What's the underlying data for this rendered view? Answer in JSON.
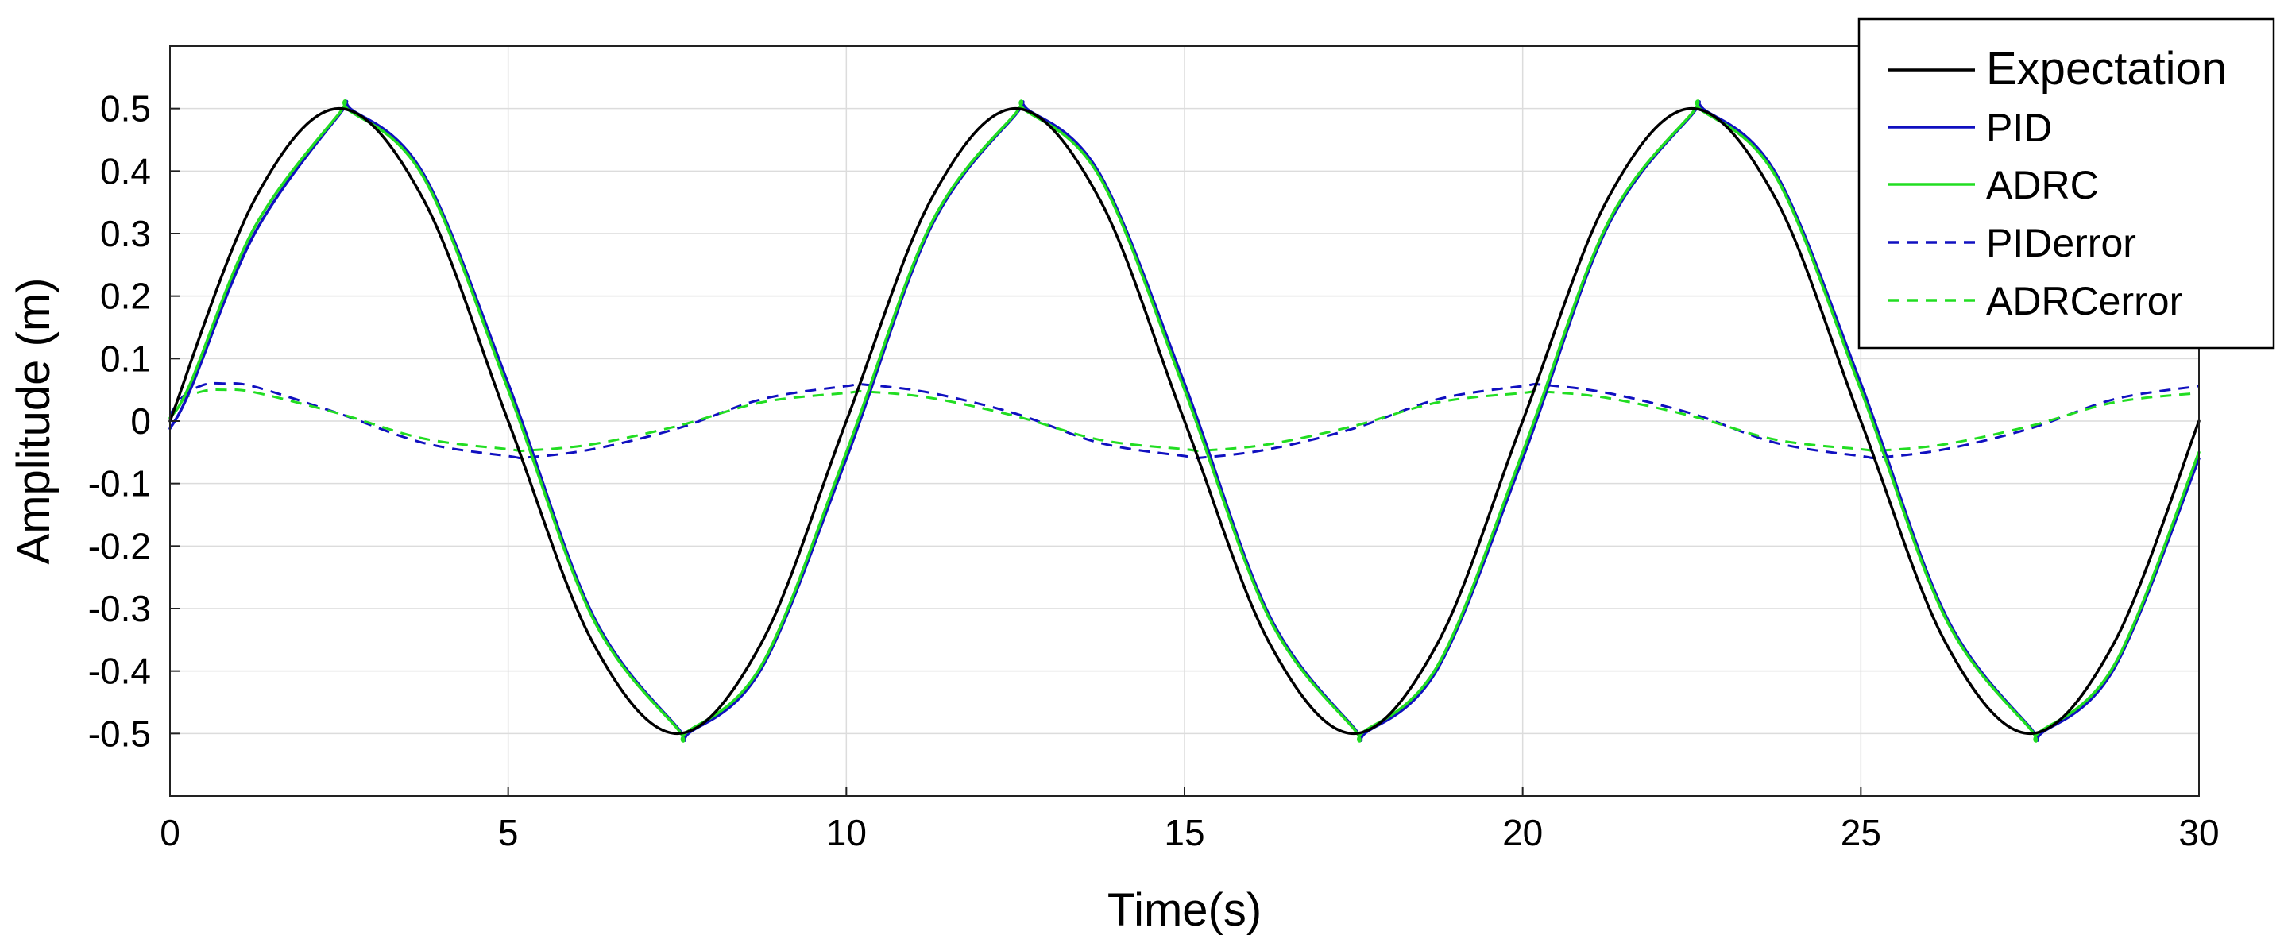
{
  "chart_data": {
    "type": "line",
    "title": "",
    "xlabel": "Time(s)",
    "ylabel": "Amplitude (m)",
    "xlim": [
      0,
      30
    ],
    "ylim": [
      -0.6,
      0.6
    ],
    "x_ticks": [
      "0",
      "5",
      "10",
      "15",
      "20",
      "25",
      "30"
    ],
    "y_ticks": [
      "0.5",
      "0.4",
      "0.3",
      "0.2",
      "0.1",
      "0",
      "-0.1",
      "-0.2",
      "-0.3",
      "-0.4",
      "-0.5"
    ],
    "grid": true,
    "legend_position": "top-right",
    "series": [
      {
        "name": "Expectation",
        "color": "#000000",
        "dash": "solid",
        "x": [
          0,
          1.25,
          2.5,
          3.75,
          5,
          6.25,
          7.5,
          8.75,
          10,
          11.25,
          12.5,
          13.75,
          15,
          16.25,
          17.5,
          18.75,
          20,
          21.25,
          22.5,
          23.75,
          25,
          26.25,
          27.5,
          28.75,
          30
        ],
        "y": [
          0,
          0.354,
          0.5,
          0.354,
          0,
          -0.354,
          -0.5,
          -0.354,
          0,
          0.354,
          0.5,
          0.354,
          0,
          -0.354,
          -0.5,
          -0.354,
          0,
          0.354,
          0.5,
          0.354,
          0,
          -0.354,
          -0.5,
          -0.354,
          0
        ]
      },
      {
        "name": "PID",
        "color": "#1010c0",
        "dash": "solid",
        "x": [
          0,
          0.3,
          1.25,
          2.5,
          2.7,
          3.75,
          5,
          6.25,
          7.5,
          7.7,
          8.75,
          10,
          11.25,
          12.5,
          12.7,
          13.75,
          15,
          16.25,
          17.5,
          17.7,
          18.75,
          20,
          21.25,
          22.5,
          22.7,
          23.75,
          25,
          26.25,
          27.5,
          27.7,
          28.75,
          30
        ],
        "y": [
          -0.012,
          0.05,
          0.3,
          0.49,
          0.497,
          0.395,
          0.06,
          -0.31,
          -0.49,
          -0.497,
          -0.395,
          -0.06,
          0.31,
          0.49,
          0.497,
          0.395,
          0.06,
          -0.31,
          -0.49,
          -0.497,
          -0.395,
          -0.06,
          0.31,
          0.49,
          0.497,
          0.395,
          0.06,
          -0.31,
          -0.49,
          -0.497,
          -0.395,
          -0.06
        ]
      },
      {
        "name": "ADRC",
        "color": "#22dd22",
        "dash": "solid",
        "x": [
          0,
          0.3,
          1.25,
          2.5,
          2.65,
          3.75,
          5,
          6.25,
          7.5,
          7.65,
          8.75,
          10,
          11.25,
          12.5,
          12.65,
          13.75,
          15,
          16.25,
          17.5,
          17.65,
          18.75,
          20,
          21.25,
          22.5,
          22.65,
          23.75,
          25,
          26.25,
          27.5,
          27.65,
          28.75,
          30
        ],
        "y": [
          0.005,
          0.06,
          0.31,
          0.492,
          0.497,
          0.39,
          0.05,
          -0.315,
          -0.492,
          -0.497,
          -0.39,
          -0.05,
          0.315,
          0.492,
          0.497,
          0.39,
          0.05,
          -0.315,
          -0.492,
          -0.497,
          -0.39,
          -0.05,
          0.315,
          0.492,
          0.497,
          0.39,
          0.05,
          -0.315,
          -0.492,
          -0.497,
          -0.39,
          -0.05
        ]
      },
      {
        "name": "PIDerror",
        "color": "#1010c0",
        "dash": "dashed",
        "x": [
          0,
          0.2,
          0.5,
          0.8,
          1.25,
          2.5,
          3.75,
          5,
          5.3,
          6.25,
          7.5,
          8.75,
          10,
          10.3,
          11.25,
          12.5,
          13.75,
          15,
          15.3,
          16.25,
          17.5,
          18.75,
          20,
          20.3,
          21.25,
          22.5,
          23.75,
          25,
          25.3,
          26.25,
          27.5,
          28.75,
          30
        ],
        "y": [
          0.01,
          0.04,
          0.058,
          0.06,
          0.055,
          0.012,
          -0.035,
          -0.056,
          -0.058,
          -0.045,
          -0.012,
          0.035,
          0.056,
          0.058,
          0.045,
          0.012,
          -0.035,
          -0.056,
          -0.058,
          -0.045,
          -0.012,
          0.035,
          0.056,
          0.058,
          0.045,
          0.012,
          -0.035,
          -0.056,
          -0.058,
          -0.045,
          -0.012,
          0.035,
          0.056
        ]
      },
      {
        "name": "ADRCerror",
        "color": "#22dd22",
        "dash": "dashed",
        "x": [
          0,
          0.2,
          0.5,
          0.8,
          1.25,
          2.5,
          3.75,
          5,
          5.3,
          6.25,
          7.5,
          8.75,
          10,
          10.3,
          11.25,
          12.5,
          13.75,
          15,
          15.3,
          16.25,
          17.5,
          18.75,
          20,
          20.3,
          21.25,
          22.5,
          23.75,
          25,
          25.3,
          26.25,
          27.5,
          28.75,
          30
        ],
        "y": [
          0.005,
          0.035,
          0.048,
          0.05,
          0.046,
          0.012,
          -0.028,
          -0.045,
          -0.047,
          -0.037,
          -0.008,
          0.03,
          0.045,
          0.047,
          0.037,
          0.008,
          -0.03,
          -0.045,
          -0.047,
          -0.037,
          -0.008,
          0.03,
          0.045,
          0.047,
          0.037,
          0.008,
          -0.03,
          -0.045,
          -0.047,
          -0.037,
          -0.008,
          0.03,
          0.045
        ]
      }
    ]
  }
}
